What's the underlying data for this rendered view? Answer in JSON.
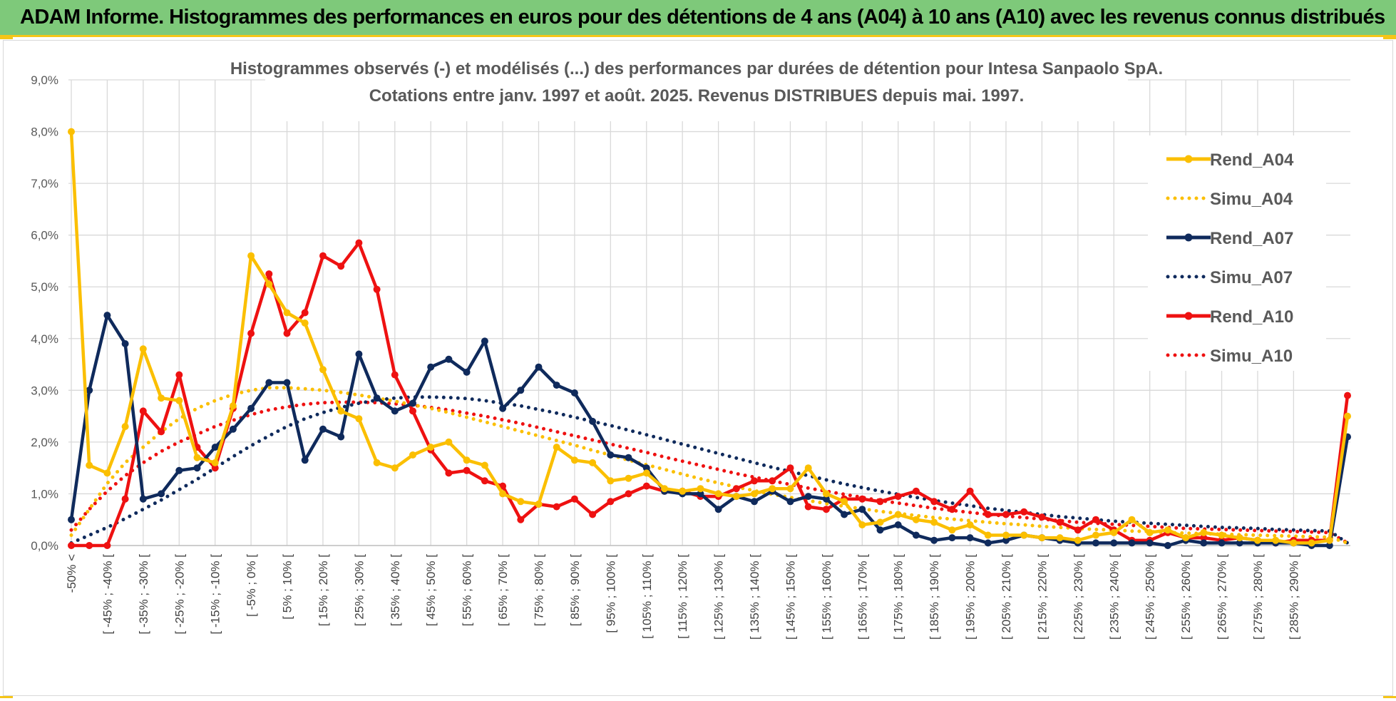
{
  "banner": {
    "title": "ADAM Informe. Histogrammes des performances en euros pour des détentions de 4 ans (A04) à 10 ans (A10) avec les revenus connus distribués"
  },
  "colors": {
    "banner_bg": "#7ec97a",
    "accent_yellow": "#f5c518",
    "A04": "#fbbf00",
    "A07": "#0f2a5c",
    "A10": "#ee1111"
  },
  "chart_data": {
    "type": "line",
    "title": "Histogrammes observés (-) et modélisés (...) des performances par durées de détention pour Intesa Sanpaolo SpA.",
    "subtitle": "Cotations entre janv. 1997 et août. 2025. Revenus DISTRIBUES depuis mai. 1997.",
    "xlabel": "",
    "ylabel": "",
    "ylim": [
      0,
      9
    ],
    "yticks": [
      "0,0%",
      "1,0%",
      "2,0%",
      "3,0%",
      "4,0%",
      "5,0%",
      "6,0%",
      "7,0%",
      "8,0%",
      "9,0%"
    ],
    "grid": true,
    "legend_position": "top-right",
    "tick_labels": [
      "-50% <",
      "[ -45% ; -40% [",
      "[ -35% ; -30% [",
      "[ -25% ; -20% [",
      "[ -15% ; -10% [",
      "[ -5% ; 0% [",
      "[ 5% ; 10% [",
      "[ 15% ; 20% [",
      "[ 25% ; 30% [",
      "[ 35% ; 40% [",
      "[ 45% ; 50% [",
      "[ 55% ; 60% [",
      "[ 65% ; 70% [",
      "[ 75% ; 80% [",
      "[ 85% ; 90% [",
      "[ 95% ; 100% [",
      "[ 105% ; 110% [",
      "[ 115% ; 120% [",
      "[ 125% ; 130% [",
      "[ 135% ; 140% [",
      "[ 145% ; 150% [",
      "[ 155% ; 160% [",
      "[ 165% ; 170% [",
      "[ 175% ; 180% [",
      "[ 185% ; 190% [",
      "[ 195% ; 200% [",
      "[ 205% ; 210% [",
      "[ 215% ; 220% [",
      "[ 225% ; 230% [",
      "[ 235% ; 240% [",
      "[ 245% ; 250% [",
      "[ 255% ; 260% [",
      "[ 265% ; 270% [",
      "[ 275% ; 280% [",
      "[ 285% ; 290% ["
    ],
    "series": [
      {
        "name": "Rend_A04",
        "style": "solid",
        "color": "#fbbf00",
        "values": [
          8.0,
          1.55,
          1.4,
          2.3,
          3.8,
          2.85,
          2.8,
          1.7,
          1.6,
          2.7,
          5.6,
          5.05,
          4.5,
          4.3,
          3.4,
          2.6,
          2.45,
          1.6,
          1.5,
          1.75,
          1.9,
          2.0,
          1.65,
          1.55,
          1.0,
          0.85,
          0.8,
          1.9,
          1.65,
          1.6,
          1.25,
          1.3,
          1.4,
          1.1,
          1.05,
          1.1,
          1.0,
          0.95,
          1.0,
          1.1,
          1.1,
          1.5,
          1.0,
          0.85,
          0.4,
          0.45,
          0.6,
          0.5,
          0.45,
          0.3,
          0.4,
          0.2,
          0.2,
          0.2,
          0.15,
          0.15,
          0.1,
          0.2,
          0.25,
          0.5,
          0.25,
          0.3,
          0.15,
          0.25,
          0.2,
          0.15,
          0.1,
          0.1,
          0.05,
          0.05,
          0.1,
          2.5
        ]
      },
      {
        "name": "Simu_A04",
        "style": "dotted",
        "color": "#fbbf00",
        "values": [
          0.2,
          0.7,
          1.2,
          1.6,
          1.9,
          2.2,
          2.45,
          2.65,
          2.8,
          2.92,
          3.0,
          3.05,
          3.05,
          3.03,
          3.0,
          2.96,
          2.91,
          2.85,
          2.79,
          2.72,
          2.65,
          2.57,
          2.48,
          2.39,
          2.3,
          2.21,
          2.12,
          2.03,
          1.94,
          1.84,
          1.75,
          1.65,
          1.56,
          1.47,
          1.38,
          1.29,
          1.21,
          1.13,
          1.06,
          0.99,
          0.93,
          0.87,
          0.81,
          0.76,
          0.71,
          0.66,
          0.62,
          0.58,
          0.54,
          0.51,
          0.48,
          0.45,
          0.42,
          0.4,
          0.37,
          0.35,
          0.33,
          0.31,
          0.3,
          0.28,
          0.27,
          0.25,
          0.24,
          0.23,
          0.22,
          0.21,
          0.2,
          0.19,
          0.18,
          0.17,
          0.16,
          0.05
        ]
      },
      {
        "name": "Rend_A07",
        "style": "solid",
        "color": "#0f2a5c",
        "values": [
          0.5,
          3.0,
          4.45,
          3.9,
          0.9,
          1.0,
          1.45,
          1.5,
          1.9,
          2.25,
          2.65,
          3.15,
          3.15,
          1.65,
          2.25,
          2.1,
          3.7,
          2.85,
          2.6,
          2.75,
          3.45,
          3.6,
          3.35,
          3.95,
          2.65,
          3.0,
          3.45,
          3.1,
          2.95,
          2.4,
          1.75,
          1.7,
          1.5,
          1.05,
          1.0,
          1.0,
          0.7,
          0.95,
          0.85,
          1.05,
          0.85,
          0.95,
          0.9,
          0.6,
          0.7,
          0.3,
          0.4,
          0.2,
          0.1,
          0.15,
          0.15,
          0.05,
          0.1,
          0.2,
          0.15,
          0.1,
          0.05,
          0.05,
          0.05,
          0.05,
          0.05,
          0.0,
          0.1,
          0.05,
          0.05,
          0.05,
          0.05,
          0.05,
          0.05,
          0.0,
          0.0,
          2.1
        ]
      },
      {
        "name": "Simu_A07",
        "style": "dotted",
        "color": "#0f2a5c",
        "values": [
          0.05,
          0.2,
          0.35,
          0.52,
          0.7,
          0.88,
          1.08,
          1.28,
          1.5,
          1.72,
          1.93,
          2.12,
          2.3,
          2.45,
          2.57,
          2.67,
          2.75,
          2.81,
          2.85,
          2.87,
          2.87,
          2.86,
          2.84,
          2.8,
          2.75,
          2.7,
          2.63,
          2.56,
          2.48,
          2.4,
          2.32,
          2.23,
          2.14,
          2.05,
          1.96,
          1.87,
          1.78,
          1.69,
          1.6,
          1.51,
          1.43,
          1.35,
          1.27,
          1.19,
          1.12,
          1.05,
          0.99,
          0.93,
          0.87,
          0.82,
          0.77,
          0.72,
          0.68,
          0.64,
          0.6,
          0.56,
          0.53,
          0.5,
          0.47,
          0.45,
          0.43,
          0.41,
          0.39,
          0.37,
          0.35,
          0.34,
          0.33,
          0.31,
          0.3,
          0.29,
          0.28,
          0.05
        ]
      },
      {
        "name": "Rend_A10",
        "style": "solid",
        "color": "#ee1111",
        "values": [
          0.0,
          0.0,
          0.0,
          0.9,
          2.6,
          2.2,
          3.3,
          1.9,
          1.5,
          2.65,
          4.1,
          5.25,
          4.1,
          4.5,
          5.6,
          5.4,
          5.85,
          4.95,
          3.3,
          2.6,
          1.85,
          1.4,
          1.45,
          1.25,
          1.15,
          0.5,
          0.8,
          0.75,
          0.9,
          0.6,
          0.85,
          1.0,
          1.15,
          1.05,
          1.05,
          0.95,
          0.95,
          1.1,
          1.25,
          1.25,
          1.5,
          0.75,
          0.7,
          0.9,
          0.9,
          0.85,
          0.95,
          1.05,
          0.85,
          0.7,
          1.05,
          0.6,
          0.6,
          0.65,
          0.55,
          0.45,
          0.3,
          0.5,
          0.3,
          0.1,
          0.1,
          0.25,
          0.15,
          0.15,
          0.1,
          0.15,
          0.1,
          0.05,
          0.1,
          0.1,
          0.1,
          2.9
        ]
      },
      {
        "name": "Simu_A10",
        "style": "dotted",
        "color": "#ee1111",
        "values": [
          0.3,
          0.7,
          1.05,
          1.35,
          1.6,
          1.82,
          2.0,
          2.15,
          2.3,
          2.42,
          2.53,
          2.62,
          2.68,
          2.73,
          2.76,
          2.77,
          2.77,
          2.76,
          2.74,
          2.71,
          2.67,
          2.62,
          2.56,
          2.5,
          2.43,
          2.36,
          2.28,
          2.2,
          2.12,
          2.04,
          1.96,
          1.88,
          1.8,
          1.71,
          1.63,
          1.55,
          1.47,
          1.39,
          1.32,
          1.25,
          1.18,
          1.11,
          1.05,
          0.99,
          0.93,
          0.87,
          0.82,
          0.77,
          0.72,
          0.68,
          0.64,
          0.6,
          0.57,
          0.54,
          0.51,
          0.48,
          0.45,
          0.43,
          0.41,
          0.39,
          0.37,
          0.35,
          0.33,
          0.32,
          0.31,
          0.3,
          0.29,
          0.28,
          0.27,
          0.26,
          0.25,
          0.05
        ]
      }
    ]
  }
}
